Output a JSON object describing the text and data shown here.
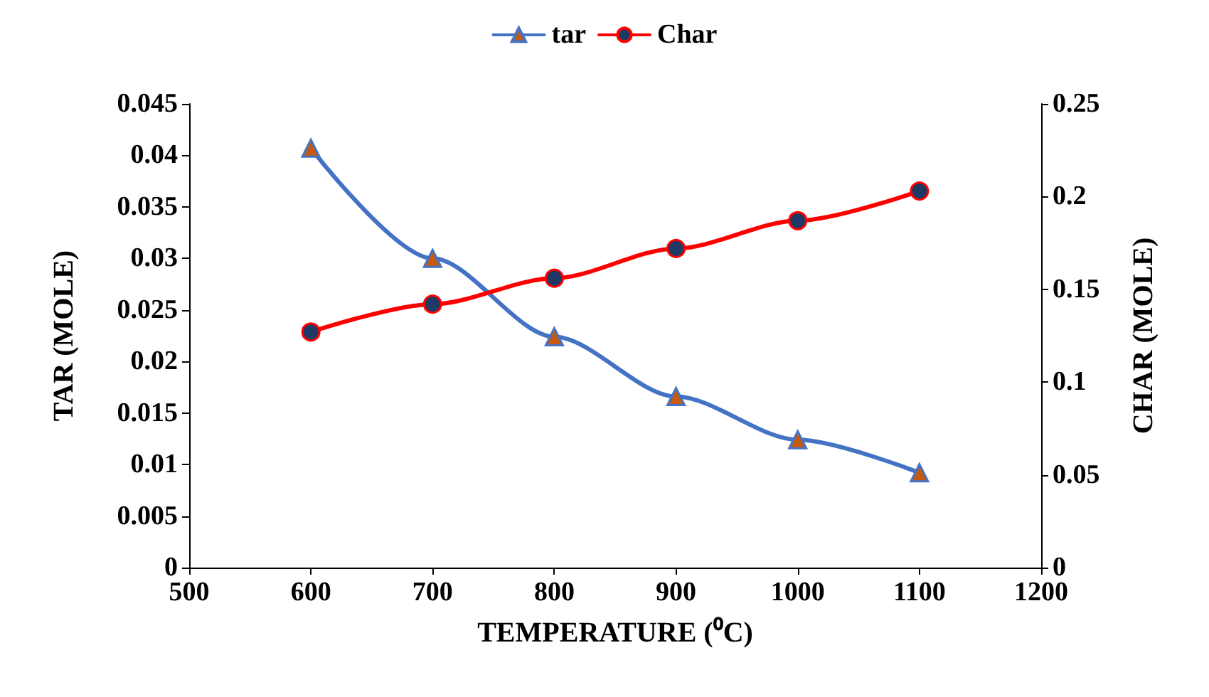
{
  "chart_data": {
    "type": "line",
    "xlabel": "TEMPERATURE (⁰C)",
    "ylabel": "TAR (MOLE)",
    "y2label": "CHAR (MOLE)",
    "x": [
      600,
      700,
      800,
      900,
      1000,
      1100
    ],
    "series": [
      {
        "name": "tar",
        "color": "#4472c4",
        "marker": "triangle",
        "values": [
          0.0407,
          0.03,
          0.0224,
          0.0166,
          0.0124,
          0.0092
        ]
      },
      {
        "name": "Char",
        "color": "#ff0000",
        "marker": "circle",
        "axis": "y2",
        "values": [
          0.127,
          0.142,
          0.156,
          0.172,
          0.187,
          0.203
        ]
      }
    ],
    "xlim": [
      500,
      1200
    ],
    "xticks": [
      500,
      600,
      700,
      800,
      900,
      1000,
      1100,
      1200
    ],
    "ylim": [
      0,
      0.045
    ],
    "yticks": [
      0,
      0.005,
      0.01,
      0.015,
      0.02,
      0.025,
      0.03,
      0.035,
      0.04,
      0.045
    ],
    "y2lim": [
      0,
      0.25
    ],
    "y2ticks": [
      0,
      0.05,
      0.1,
      0.15,
      0.2,
      0.25
    ],
    "grid": false,
    "legend": "top",
    "line_style": "solid"
  }
}
